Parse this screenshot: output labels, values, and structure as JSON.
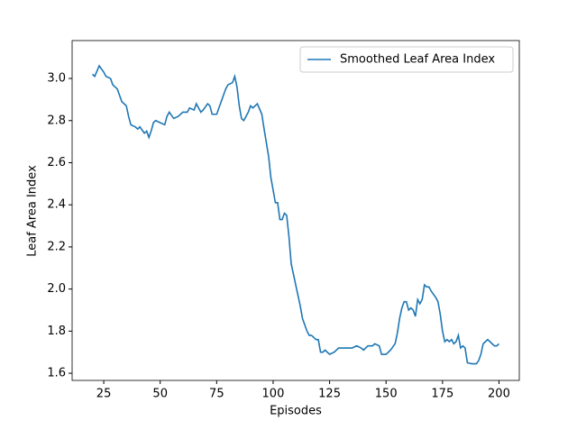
{
  "chart_data": {
    "type": "line",
    "x_label": "Episodes",
    "y_label": "Leaf Area Index",
    "x": [
      20,
      21,
      23,
      25,
      26,
      28,
      29,
      31,
      32,
      33,
      35,
      36,
      37,
      39,
      40,
      41,
      43,
      44,
      45,
      46,
      47,
      48,
      50,
      52,
      53,
      54,
      56,
      58,
      60,
      62,
      63,
      65,
      66,
      68,
      69,
      71,
      72,
      73,
      75,
      76,
      77,
      79,
      80,
      82,
      83,
      84,
      85,
      86,
      87,
      89,
      90,
      91,
      93,
      95,
      96,
      98,
      99,
      100,
      101,
      102,
      103,
      104,
      105,
      106,
      107,
      108,
      110,
      112,
      113,
      115,
      116,
      117,
      118,
      119,
      120,
      121,
      122,
      123,
      125,
      127,
      129,
      131,
      133,
      135,
      137,
      139,
      140,
      142,
      144,
      145,
      147,
      148,
      150,
      152,
      154,
      155,
      156,
      157,
      158,
      159,
      160,
      161,
      162,
      163,
      164,
      165,
      166,
      167,
      168,
      169,
      170,
      172,
      173,
      174,
      175,
      176,
      177,
      178,
      179,
      180,
      181,
      182,
      183,
      184,
      185,
      186,
      188,
      190,
      191,
      192,
      193,
      194,
      195,
      196,
      197,
      198,
      199,
      200
    ],
    "series": [
      {
        "name": "Smoothed Leaf Area Index",
        "color": "#1f77b4",
        "values": [
          3.02,
          3.01,
          3.06,
          3.03,
          3.01,
          3.0,
          2.97,
          2.95,
          2.92,
          2.89,
          2.87,
          2.82,
          2.78,
          2.77,
          2.76,
          2.77,
          2.74,
          2.75,
          2.72,
          2.75,
          2.79,
          2.8,
          2.79,
          2.78,
          2.82,
          2.84,
          2.81,
          2.82,
          2.84,
          2.84,
          2.86,
          2.85,
          2.88,
          2.84,
          2.85,
          2.88,
          2.87,
          2.83,
          2.83,
          2.86,
          2.89,
          2.95,
          2.97,
          2.98,
          3.01,
          2.96,
          2.87,
          2.81,
          2.8,
          2.84,
          2.87,
          2.86,
          2.88,
          2.83,
          2.76,
          2.63,
          2.53,
          2.47,
          2.41,
          2.41,
          2.33,
          2.33,
          2.36,
          2.35,
          2.25,
          2.12,
          2.02,
          1.92,
          1.86,
          1.8,
          1.78,
          1.78,
          1.77,
          1.76,
          1.76,
          1.7,
          1.7,
          1.71,
          1.69,
          1.7,
          1.72,
          1.72,
          1.72,
          1.72,
          1.73,
          1.72,
          1.71,
          1.73,
          1.73,
          1.74,
          1.73,
          1.69,
          1.69,
          1.71,
          1.74,
          1.79,
          1.86,
          1.91,
          1.94,
          1.94,
          1.9,
          1.91,
          1.9,
          1.87,
          1.95,
          1.93,
          1.95,
          2.02,
          2.01,
          2.01,
          1.99,
          1.96,
          1.94,
          1.88,
          1.8,
          1.75,
          1.76,
          1.75,
          1.76,
          1.74,
          1.75,
          1.78,
          1.72,
          1.73,
          1.72,
          1.65,
          1.645,
          1.645,
          1.66,
          1.69,
          1.74,
          1.75,
          1.76,
          1.75,
          1.74,
          1.73,
          1.73,
          1.74
        ]
      }
    ],
    "xlim": [
      11,
      209
    ],
    "ylim": [
      1.566,
      3.18
    ],
    "xticks": [
      25,
      50,
      75,
      100,
      125,
      150,
      175,
      200
    ],
    "yticks": [
      {
        "value": 1.6,
        "label": "1.6"
      },
      {
        "value": 1.8,
        "label": "1.8"
      },
      {
        "value": 2.0,
        "label": "2.0"
      },
      {
        "value": 2.2,
        "label": "2.2"
      },
      {
        "value": 2.4,
        "label": "2.4"
      },
      {
        "value": 2.6,
        "label": "2.6"
      },
      {
        "value": 2.8,
        "label": "2.8"
      },
      {
        "value": 3.0,
        "label": "3.0"
      }
    ],
    "legend": "upper right"
  }
}
